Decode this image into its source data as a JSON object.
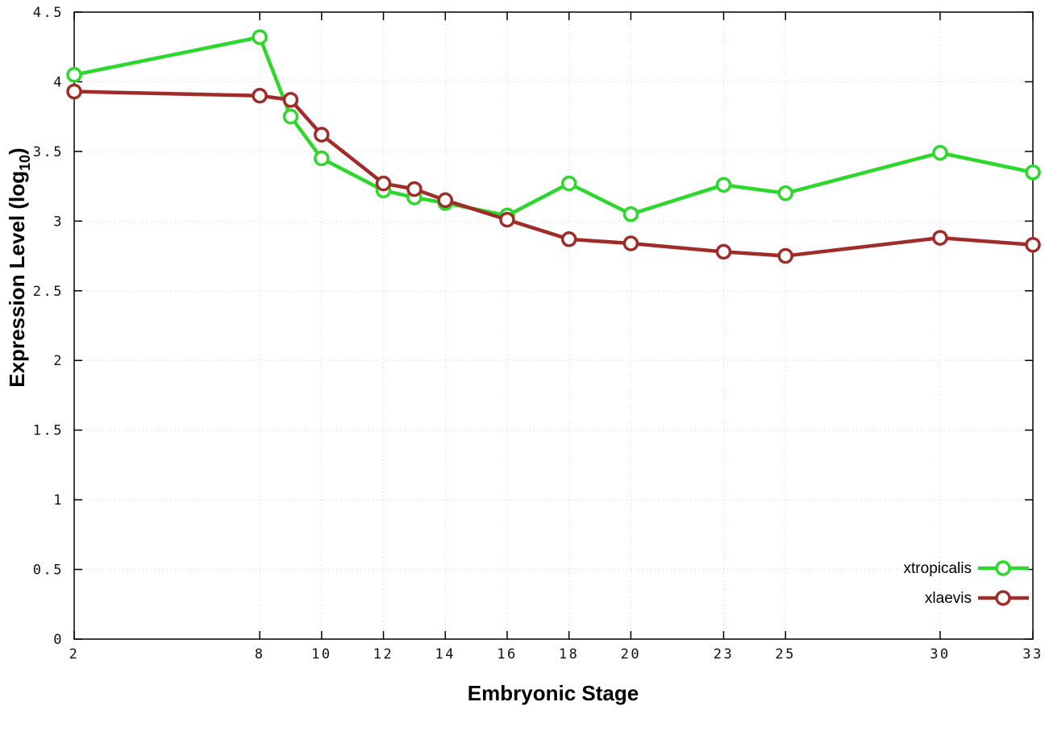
{
  "chart_data": {
    "type": "line",
    "title": "",
    "xlabel": "Embryonic Stage",
    "ylabel": "Expression Level (log10)",
    "ylabel_parts": {
      "pre": "Expression Level (log",
      "sub": "10",
      "post": ")"
    },
    "xlim": [
      2,
      33
    ],
    "ylim": [
      0,
      4.5
    ],
    "grid": true,
    "legend_position": "bottom-right",
    "axis_color": "#000000",
    "grid_color": "#d0d0d0",
    "x_ticks": {
      "values": [
        2,
        8,
        10,
        12,
        14,
        16,
        18,
        20,
        23,
        25,
        30,
        33
      ],
      "labels": [
        "2",
        "8",
        "10",
        "12",
        "14",
        "16",
        "18",
        "20",
        "23",
        "25",
        "30",
        "33"
      ]
    },
    "y_ticks": {
      "values": [
        0,
        0.5,
        1,
        1.5,
        2,
        2.5,
        3,
        3.5,
        4,
        4.5
      ],
      "labels": [
        "0",
        "0.5",
        "1",
        "1.5",
        "2",
        "2.5",
        "3",
        "3.5",
        "4",
        "4.5"
      ]
    },
    "x": [
      2,
      8,
      9,
      10,
      12,
      13,
      14,
      16,
      18,
      20,
      23,
      25,
      30,
      33
    ],
    "series": [
      {
        "name": "xtropicalis",
        "color": "#2bd82b",
        "marker": "open-circle",
        "values": [
          4.05,
          4.32,
          3.75,
          3.45,
          3.22,
          3.17,
          3.13,
          3.04,
          3.27,
          3.05,
          3.26,
          3.2,
          3.49,
          3.35
        ]
      },
      {
        "name": "xlaevis",
        "color": "#a02c2a",
        "marker": "open-circle",
        "values": [
          3.93,
          3.9,
          3.87,
          3.62,
          3.27,
          3.23,
          3.15,
          3.01,
          2.87,
          2.84,
          2.78,
          2.75,
          2.88,
          2.83
        ]
      }
    ]
  }
}
